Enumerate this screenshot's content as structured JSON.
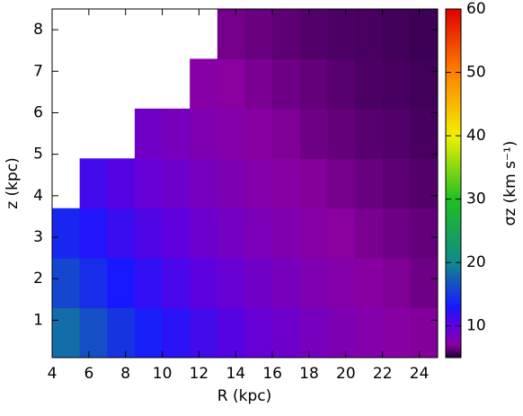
{
  "chart_data": {
    "type": "heatmap",
    "x_label": "R (kpc)",
    "y_label": "z (kpc)",
    "colorbar_label": "σz (km s⁻¹)",
    "xlim": [
      4,
      25
    ],
    "ylim": [
      0.1,
      8.5
    ],
    "xticks": [
      4,
      6,
      8,
      10,
      12,
      14,
      16,
      18,
      20,
      22,
      24
    ],
    "yticks": [
      1,
      2,
      3,
      4,
      5,
      6,
      7,
      8
    ],
    "x_edges": [
      4,
      5.5,
      7,
      8.5,
      10,
      11.5,
      13,
      14.5,
      16,
      17.5,
      19,
      20.5,
      22,
      23.5,
      25
    ],
    "y_edges": [
      0.1,
      1.3,
      2.5,
      3.7,
      4.9,
      6.1,
      7.3,
      8.5
    ],
    "z": [
      [
        18.2,
        16.4,
        14.8,
        13.4,
        12.2,
        11.2,
        10.4,
        9.6,
        9.0,
        8.4,
        7.9,
        7.5,
        7.2,
        6.9
      ],
      [
        15.8,
        14.3,
        13.0,
        11.9,
        10.9,
        10.1,
        9.4,
        8.8,
        8.3,
        7.8,
        7.4,
        7.1,
        6.8,
        6.5
      ],
      [
        13.9,
        12.6,
        11.6,
        10.7,
        9.9,
        9.2,
        8.6,
        8.1,
        7.7,
        7.3,
        7.0,
        6.7,
        6.5,
        6.3
      ],
      [
        null,
        11.2,
        10.4,
        9.6,
        9.0,
        8.4,
        7.9,
        7.5,
        7.2,
        6.9,
        6.6,
        6.4,
        6.2,
        6.0
      ],
      [
        null,
        null,
        null,
        8.8,
        8.3,
        7.8,
        7.4,
        7.1,
        6.8,
        6.5,
        6.3,
        6.1,
        6.0,
        5.8
      ],
      [
        null,
        null,
        null,
        null,
        null,
        7.3,
        7.0,
        6.7,
        6.5,
        6.3,
        6.1,
        5.9,
        5.8,
        5.7
      ],
      [
        null,
        null,
        null,
        null,
        null,
        null,
        6.6,
        6.4,
        6.2,
        6.0,
        5.9,
        5.8,
        5.7,
        5.6
      ]
    ],
    "clim": [
      5,
      60
    ],
    "cticks": [
      10,
      20,
      30,
      40,
      50,
      60
    ],
    "colormap": [
      [
        5,
        "#1a0033"
      ],
      [
        7,
        "#8a00a0"
      ],
      [
        10,
        "#6000e0"
      ],
      [
        13,
        "#1818ff"
      ],
      [
        20,
        "#108a8a"
      ],
      [
        30,
        "#20c020"
      ],
      [
        40,
        "#f0f000"
      ],
      [
        50,
        "#ff8000"
      ],
      [
        60,
        "#e00000"
      ]
    ]
  }
}
